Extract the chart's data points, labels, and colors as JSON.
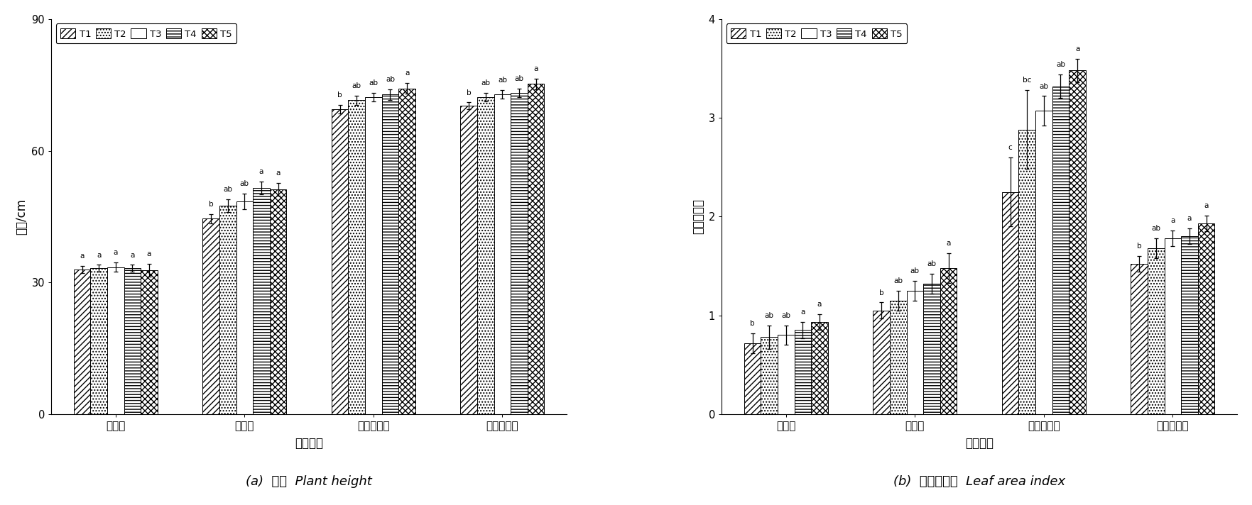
{
  "chart_a": {
    "ylabel": "株高/cm",
    "xlabel": "生长时期",
    "ylim": [
      0,
      90
    ],
    "yticks": [
      0,
      30,
      60,
      90
    ],
    "categories": [
      "返青期",
      "拔节期",
      "蒜薹伸长期",
      "蒜头膨大期"
    ],
    "treatments": [
      "T1",
      "T2",
      "T3",
      "T4",
      "T5"
    ],
    "values": [
      [
        33.0,
        33.2,
        33.5,
        33.2,
        32.8
      ],
      [
        44.5,
        47.5,
        48.5,
        51.5,
        51.2
      ],
      [
        69.5,
        71.5,
        72.2,
        72.8,
        74.2
      ],
      [
        70.2,
        72.2,
        72.8,
        73.2,
        75.2
      ]
    ],
    "errors": [
      [
        0.8,
        0.8,
        1.0,
        0.8,
        1.5
      ],
      [
        1.0,
        1.5,
        1.8,
        1.5,
        1.5
      ],
      [
        1.0,
        1.0,
        1.0,
        1.2,
        1.2
      ],
      [
        0.8,
        1.0,
        1.0,
        1.0,
        1.2
      ]
    ],
    "sig_labels": [
      [
        "a",
        "a",
        "a",
        "a",
        "a"
      ],
      [
        "b",
        "ab",
        "ab",
        "a",
        "a"
      ],
      [
        "b",
        "ab",
        "ab",
        "ab",
        "a"
      ],
      [
        "b",
        "ab",
        "ab",
        "ab",
        "a"
      ]
    ]
  },
  "chart_b": {
    "ylabel": "叶面积指数",
    "xlabel": "生长时期",
    "ylim": [
      0,
      4
    ],
    "yticks": [
      0,
      1,
      2,
      3,
      4
    ],
    "categories": [
      "返青期",
      "拔节期",
      "蒜薹伸长期",
      "蒜头膨大期"
    ],
    "treatments": [
      "T1",
      "T2",
      "T3",
      "T4",
      "T5"
    ],
    "values": [
      [
        0.72,
        0.78,
        0.8,
        0.85,
        0.93
      ],
      [
        1.05,
        1.15,
        1.25,
        1.32,
        1.48
      ],
      [
        2.25,
        2.88,
        3.07,
        3.32,
        3.48
      ],
      [
        1.52,
        1.68,
        1.78,
        1.8,
        1.93
      ]
    ],
    "errors": [
      [
        0.1,
        0.12,
        0.1,
        0.08,
        0.08
      ],
      [
        0.08,
        0.1,
        0.1,
        0.1,
        0.15
      ],
      [
        0.35,
        0.4,
        0.15,
        0.12,
        0.12
      ],
      [
        0.08,
        0.1,
        0.08,
        0.08,
        0.08
      ]
    ],
    "sig_labels": [
      [
        "b",
        "ab",
        "ab",
        "a",
        "a"
      ],
      [
        "b",
        "ab",
        "ab",
        "ab",
        "a"
      ],
      [
        "c",
        "bc",
        "ab",
        "ab",
        "a"
      ],
      [
        "b",
        "ab",
        "a",
        "a",
        "a"
      ]
    ]
  },
  "bar_width": 0.13,
  "legend_labels": [
    "T1",
    "T2",
    "T3",
    "T4",
    "T5"
  ],
  "subtitle_a_cn": "(a)  株高  Plant height",
  "subtitle_b_cn": "(b)  叶面积指数  Leaf area index"
}
